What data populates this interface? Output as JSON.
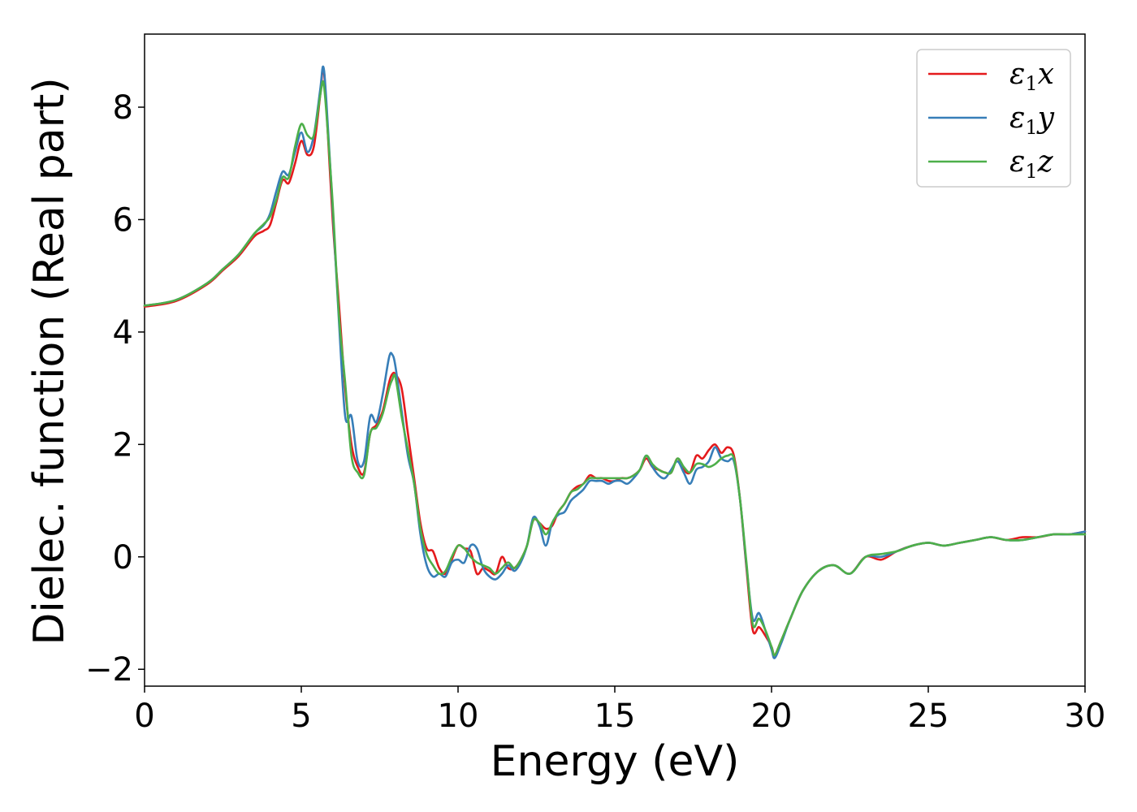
{
  "chart_data": {
    "type": "line",
    "title": "",
    "xlabel": "Energy (eV)",
    "ylabel": "Dielec. function (Real part)",
    "xlim": [
      0,
      30
    ],
    "ylim": [
      -2.3,
      9.3
    ],
    "xticks": [
      0,
      5,
      10,
      15,
      20,
      25,
      30
    ],
    "xtick_labels": [
      "0",
      "5",
      "10",
      "15",
      "20",
      "25",
      "30"
    ],
    "yticks": [
      -2,
      0,
      2,
      4,
      6,
      8
    ],
    "ytick_labels": [
      "−2",
      "0",
      "2",
      "4",
      "6",
      "8"
    ],
    "grid": false,
    "legend_position": "top-right",
    "series": [
      {
        "name": "ε1x",
        "legend_symbol": "ε",
        "legend_sub": "1",
        "legend_suffix": "x",
        "color": "#e41a1c",
        "x": [
          0,
          1,
          2,
          2.5,
          3,
          3.5,
          3.8,
          4.0,
          4.2,
          4.4,
          4.6,
          4.8,
          5.0,
          5.2,
          5.4,
          5.6,
          5.7,
          5.8,
          6.0,
          6.2,
          6.4,
          6.6,
          6.8,
          7.0,
          7.2,
          7.4,
          7.6,
          7.8,
          7.9,
          8.0,
          8.2,
          8.4,
          8.6,
          8.8,
          9.0,
          9.2,
          9.4,
          9.6,
          9.8,
          10.0,
          10.2,
          10.4,
          10.6,
          10.8,
          11.0,
          11.2,
          11.4,
          11.6,
          11.8,
          12.0,
          12.2,
          12.4,
          12.6,
          12.8,
          13.0,
          13.2,
          13.4,
          13.6,
          13.8,
          14.0,
          14.2,
          14.4,
          14.6,
          14.8,
          15.0,
          15.2,
          15.4,
          15.6,
          15.8,
          16.0,
          16.2,
          16.4,
          16.6,
          16.8,
          17.0,
          17.2,
          17.4,
          17.6,
          17.8,
          18.0,
          18.2,
          18.4,
          18.6,
          18.8,
          19.0,
          19.2,
          19.4,
          19.6,
          19.8,
          20.0,
          20.1,
          20.3,
          20.6,
          21.0,
          21.5,
          22.0,
          22.5,
          23.0,
          23.5,
          24.0,
          24.5,
          25.0,
          25.5,
          26.0,
          26.5,
          27.0,
          27.5,
          28.0,
          28.5,
          29.0,
          29.5,
          30.0
        ],
        "y": [
          4.45,
          4.55,
          4.85,
          5.1,
          5.35,
          5.7,
          5.8,
          5.9,
          6.3,
          6.7,
          6.65,
          7.0,
          7.4,
          7.15,
          7.3,
          8.2,
          8.7,
          8.0,
          6.0,
          4.5,
          3.0,
          2.0,
          1.6,
          1.5,
          2.2,
          2.35,
          2.6,
          3.1,
          3.25,
          3.25,
          3.0,
          2.2,
          1.4,
          0.6,
          0.15,
          0.1,
          -0.2,
          -0.3,
          -0.05,
          0.2,
          0.15,
          0.1,
          -0.3,
          -0.2,
          -0.25,
          -0.3,
          0.0,
          -0.2,
          -0.2,
          -0.05,
          0.2,
          0.65,
          0.6,
          0.5,
          0.55,
          0.8,
          0.95,
          1.15,
          1.25,
          1.3,
          1.45,
          1.4,
          1.4,
          1.35,
          1.35,
          1.4,
          1.4,
          1.45,
          1.55,
          1.75,
          1.6,
          1.55,
          1.5,
          1.5,
          1.75,
          1.55,
          1.5,
          1.8,
          1.75,
          1.9,
          2.0,
          1.85,
          1.95,
          1.8,
          1.0,
          -0.2,
          -1.3,
          -1.25,
          -1.4,
          -1.6,
          -1.75,
          -1.5,
          -1.1,
          -0.6,
          -0.25,
          -0.15,
          -0.3,
          0.0,
          -0.05,
          0.1,
          0.2,
          0.25,
          0.2,
          0.25,
          0.3,
          0.35,
          0.3,
          0.35,
          0.35,
          0.4,
          0.4,
          0.45
        ]
      },
      {
        "name": "ε1y",
        "legend_symbol": "ε",
        "legend_sub": "1",
        "legend_suffix": "y",
        "color": "#377eb8",
        "x": [
          0,
          1,
          2,
          2.5,
          3,
          3.5,
          3.8,
          4.0,
          4.2,
          4.4,
          4.6,
          4.8,
          5.0,
          5.2,
          5.4,
          5.6,
          5.7,
          5.8,
          6.0,
          6.2,
          6.4,
          6.6,
          6.8,
          7.0,
          7.2,
          7.4,
          7.6,
          7.8,
          7.9,
          8.0,
          8.2,
          8.4,
          8.6,
          8.8,
          9.0,
          9.2,
          9.4,
          9.6,
          9.8,
          10.0,
          10.2,
          10.4,
          10.6,
          10.8,
          11.0,
          11.2,
          11.4,
          11.6,
          11.8,
          12.0,
          12.2,
          12.4,
          12.6,
          12.8,
          13.0,
          13.2,
          13.4,
          13.6,
          13.8,
          14.0,
          14.2,
          14.4,
          14.6,
          14.8,
          15.0,
          15.2,
          15.4,
          15.6,
          15.8,
          16.0,
          16.2,
          16.4,
          16.6,
          16.8,
          17.0,
          17.2,
          17.4,
          17.6,
          17.8,
          18.0,
          18.2,
          18.4,
          18.6,
          18.8,
          19.0,
          19.2,
          19.4,
          19.6,
          19.8,
          20.0,
          20.1,
          20.3,
          20.6,
          21.0,
          21.5,
          22.0,
          22.5,
          23.0,
          23.5,
          24.0,
          24.5,
          25.0,
          25.5,
          26.0,
          26.5,
          27.0,
          27.5,
          28.0,
          28.5,
          29.0,
          29.5,
          30.0
        ],
        "y": [
          4.47,
          4.57,
          4.87,
          5.12,
          5.38,
          5.75,
          5.9,
          6.1,
          6.5,
          6.85,
          6.8,
          7.2,
          7.55,
          7.2,
          7.5,
          8.3,
          8.72,
          8.1,
          6.2,
          4.2,
          2.5,
          2.5,
          1.7,
          1.7,
          2.5,
          2.4,
          2.9,
          3.55,
          3.6,
          3.4,
          2.6,
          1.8,
          1.3,
          0.4,
          -0.15,
          -0.35,
          -0.3,
          -0.35,
          -0.1,
          -0.05,
          -0.1,
          0.2,
          0.15,
          -0.2,
          -0.35,
          -0.4,
          -0.3,
          -0.15,
          -0.25,
          -0.1,
          0.2,
          0.7,
          0.55,
          0.2,
          0.6,
          0.75,
          0.8,
          1.0,
          1.1,
          1.2,
          1.35,
          1.35,
          1.35,
          1.3,
          1.35,
          1.35,
          1.3,
          1.4,
          1.55,
          1.8,
          1.6,
          1.45,
          1.4,
          1.55,
          1.7,
          1.5,
          1.3,
          1.55,
          1.6,
          1.7,
          1.95,
          1.75,
          1.7,
          1.7,
          1.0,
          -0.15,
          -1.1,
          -1.0,
          -1.3,
          -1.65,
          -1.8,
          -1.55,
          -1.1,
          -0.6,
          -0.25,
          -0.15,
          -0.3,
          0.0,
          0.0,
          0.1,
          0.2,
          0.25,
          0.2,
          0.25,
          0.3,
          0.35,
          0.3,
          0.3,
          0.35,
          0.4,
          0.4,
          0.45
        ]
      },
      {
        "name": "ε1z",
        "legend_symbol": "ε",
        "legend_sub": "1",
        "legend_suffix": "z",
        "color": "#4daf4a",
        "x": [
          0,
          1,
          2,
          2.5,
          3,
          3.5,
          3.8,
          4.0,
          4.2,
          4.4,
          4.6,
          4.8,
          5.0,
          5.2,
          5.4,
          5.6,
          5.7,
          5.8,
          6.0,
          6.2,
          6.4,
          6.6,
          6.8,
          7.0,
          7.2,
          7.4,
          7.6,
          7.8,
          7.9,
          8.0,
          8.2,
          8.4,
          8.6,
          8.8,
          9.0,
          9.2,
          9.4,
          9.6,
          9.8,
          10.0,
          10.2,
          10.4,
          10.6,
          10.8,
          11.0,
          11.2,
          11.4,
          11.6,
          11.8,
          12.0,
          12.2,
          12.4,
          12.6,
          12.8,
          13.0,
          13.2,
          13.4,
          13.6,
          13.8,
          14.0,
          14.2,
          14.4,
          14.6,
          14.8,
          15.0,
          15.2,
          15.4,
          15.6,
          15.8,
          16.0,
          16.2,
          16.4,
          16.6,
          16.8,
          17.0,
          17.2,
          17.4,
          17.6,
          17.8,
          18.0,
          18.2,
          18.4,
          18.6,
          18.8,
          19.0,
          19.2,
          19.4,
          19.6,
          19.8,
          20.0,
          20.1,
          20.3,
          20.6,
          21.0,
          21.5,
          22.0,
          22.5,
          23.0,
          23.5,
          24.0,
          24.5,
          25.0,
          25.5,
          26.0,
          26.5,
          27.0,
          27.5,
          28.0,
          28.5,
          29.0,
          29.5,
          30.0
        ],
        "y": [
          4.47,
          4.57,
          4.87,
          5.12,
          5.38,
          5.75,
          5.92,
          6.05,
          6.35,
          6.75,
          6.75,
          7.3,
          7.7,
          7.5,
          7.5,
          8.2,
          8.45,
          7.9,
          6.3,
          4.3,
          3.1,
          1.8,
          1.5,
          1.45,
          2.2,
          2.3,
          2.55,
          3.0,
          3.15,
          3.2,
          2.5,
          1.9,
          1.3,
          0.5,
          0.05,
          -0.15,
          -0.3,
          -0.25,
          0.0,
          0.2,
          0.15,
          0.0,
          -0.1,
          -0.15,
          -0.2,
          -0.3,
          -0.2,
          -0.1,
          -0.2,
          -0.05,
          0.2,
          0.65,
          0.6,
          0.4,
          0.6,
          0.8,
          0.95,
          1.15,
          1.2,
          1.3,
          1.4,
          1.4,
          1.4,
          1.4,
          1.4,
          1.4,
          1.4,
          1.45,
          1.55,
          1.8,
          1.65,
          1.55,
          1.5,
          1.5,
          1.75,
          1.6,
          1.5,
          1.65,
          1.65,
          1.6,
          1.65,
          1.75,
          1.8,
          1.75,
          1.0,
          -0.1,
          -1.2,
          -1.1,
          -1.3,
          -1.6,
          -1.75,
          -1.5,
          -1.1,
          -0.6,
          -0.25,
          -0.15,
          -0.3,
          0.0,
          0.05,
          0.1,
          0.2,
          0.25,
          0.2,
          0.25,
          0.3,
          0.35,
          0.3,
          0.3,
          0.35,
          0.4,
          0.4,
          0.4
        ]
      }
    ]
  }
}
